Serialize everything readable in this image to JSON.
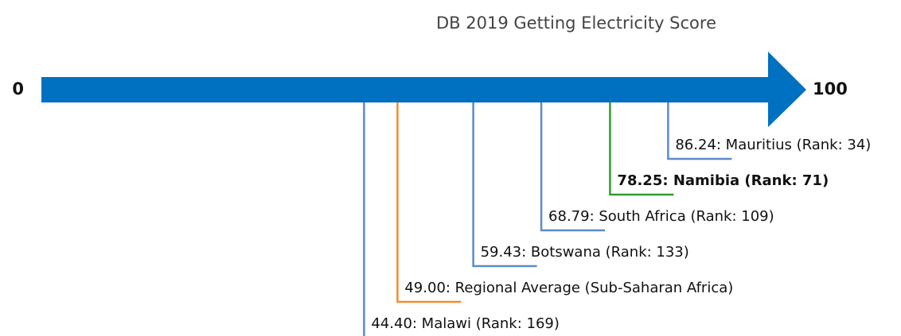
{
  "chart_data": {
    "type": "numberline",
    "title": "DB 2019 Getting Electricity Score",
    "values": [
      86.24,
      78.25,
      68.79,
      59.43,
      49.0,
      44.4
    ],
    "value_labels": [
      "86.24: Mauritius (Rank: 34)",
      "78.25: Namibia (Rank: 71)",
      "68.79: South Africa (Rank: 109)",
      "59.43: Botswana (Rank: 133)",
      "49.00: Regional Average (Sub-Saharan Africa)",
      "44.40: Malawi (Rank: 169)"
    ],
    "colors": [
      "#5b8bc9",
      "#2ca02c",
      "#5b8bc9",
      "#5b8bc9",
      "#f28e2b",
      "#5b8bc9"
    ],
    "bold": [
      false,
      true,
      false,
      false,
      false,
      false
    ],
    "arrow_color": "#0070c0",
    "xlim": [
      0,
      100
    ],
    "xticks": [
      0,
      100
    ]
  }
}
